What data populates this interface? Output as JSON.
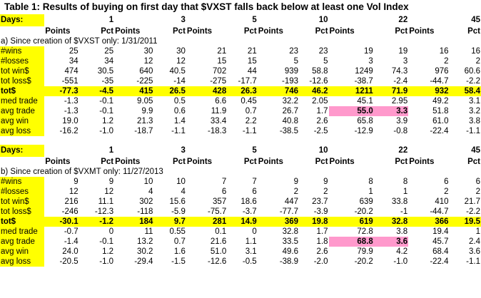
{
  "title": "Table 1: Results of buying on first day that $VXST falls back below at least one Vol Index",
  "colors": {
    "label_fill": "#ffff00",
    "highlight_row": "#ffff00",
    "highlight_cell": "#ff99cc"
  },
  "sections": [
    {
      "days_label": "Days:",
      "days": [
        "1",
        "3",
        "5",
        "10",
        "22",
        "45"
      ],
      "points_label": "Points",
      "pct_label": "Pct",
      "note": "a) Since creation of $VXST only: 1/31/2011",
      "rows": [
        {
          "label": "#wins",
          "vals": [
            "25",
            "25",
            "30",
            "30",
            "21",
            "21",
            "23",
            "23",
            "19",
            "19",
            "16",
            "16"
          ]
        },
        {
          "label": "#losses",
          "vals": [
            "34",
            "34",
            "12",
            "12",
            "15",
            "15",
            "5",
            "5",
            "3",
            "3",
            "2",
            "2"
          ]
        },
        {
          "label": "tot win$",
          "vals": [
            "474",
            "30.5",
            "640",
            "40.5",
            "702",
            "44",
            "939",
            "58.8",
            "1249",
            "74.3",
            "976",
            "60.6"
          ]
        },
        {
          "label": "tot loss$",
          "vals": [
            "-551",
            "-35",
            "-225",
            "-14",
            "-275",
            "-17.7",
            "-193",
            "-12.6",
            "-38.7",
            "-2.4",
            "-44.7",
            "-2.2"
          ]
        },
        {
          "label": "tot$",
          "vals": [
            "-77.3",
            "-4.5",
            "415",
            "26.5",
            "428",
            "26.3",
            "746",
            "46.2",
            "1211",
            "71.9",
            "932",
            "58.4"
          ]
        },
        {
          "label": "med trade",
          "vals": [
            "-1.3",
            "-0.1",
            "9.05",
            "0.5",
            "6.6",
            "0.45",
            "32.2",
            "2.05",
            "45.1",
            "2.95",
            "49.2",
            "3.1"
          ]
        },
        {
          "label": "avg trade",
          "vals": [
            "-1.3",
            "-0.1",
            "9.9",
            "0.6",
            "11.9",
            "0.7",
            "26.7",
            "1.7",
            "55.0",
            "3.3",
            "51.8",
            "3.2"
          ]
        },
        {
          "label": "avg win",
          "vals": [
            "19.0",
            "1.2",
            "21.3",
            "1.4",
            "33.4",
            "2.2",
            "40.8",
            "2.6",
            "65.8",
            "3.9",
            "61.0",
            "3.8"
          ]
        },
        {
          "label": "avg loss",
          "vals": [
            "-16.2",
            "-1.0",
            "-18.7",
            "-1.1",
            "-18.3",
            "-1.1",
            "-38.5",
            "-2.5",
            "-12.9",
            "-0.8",
            "-22.4",
            "-1.1"
          ]
        }
      ]
    },
    {
      "days_label": "Days:",
      "days": [
        "1",
        "3",
        "5",
        "10",
        "22",
        "45"
      ],
      "points_label": "Points",
      "pct_label": "Pct",
      "note": "b) Since creation of $VXMT only: 11/27/2013",
      "rows": [
        {
          "label": "#wins",
          "vals": [
            "9",
            "9",
            "10",
            "10",
            "7",
            "7",
            "9",
            "9",
            "8",
            "8",
            "6",
            "6"
          ]
        },
        {
          "label": "#losses",
          "vals": [
            "12",
            "12",
            "4",
            "4",
            "6",
            "6",
            "2",
            "2",
            "1",
            "1",
            "2",
            "2"
          ]
        },
        {
          "label": "tot win$",
          "vals": [
            "216",
            "11.1",
            "302",
            "15.6",
            "357",
            "18.6",
            "447",
            "23.7",
            "639",
            "33.8",
            "410",
            "21.7"
          ]
        },
        {
          "label": "tot loss$",
          "vals": [
            "-246",
            "-12.3",
            "-118",
            "-5.9",
            "-75.7",
            "-3.7",
            "-77.7",
            "-3.9",
            "-20.2",
            "-1",
            "-44.7",
            "-2.2"
          ]
        },
        {
          "label": "tot$",
          "vals": [
            "-30.1",
            "-1.2",
            "184",
            "9.7",
            "281",
            "14.9",
            "369",
            "19.8",
            "619",
            "32.8",
            "366",
            "19.5"
          ]
        },
        {
          "label": "med trade",
          "vals": [
            "-0.7",
            "0",
            "11",
            "0.55",
            "0.1",
            "0",
            "32.8",
            "1.7",
            "72.8",
            "3.8",
            "19.4",
            "1"
          ]
        },
        {
          "label": "avg trade",
          "vals": [
            "-1.4",
            "-0.1",
            "13.2",
            "0.7",
            "21.6",
            "1.1",
            "33.5",
            "1.8",
            "68.8",
            "3.6",
            "45.7",
            "2.4"
          ]
        },
        {
          "label": "avg win",
          "vals": [
            "24.0",
            "1.2",
            "30.2",
            "1.6",
            "51.0",
            "3.1",
            "49.6",
            "2.6",
            "79.9",
            "4.2",
            "68.4",
            "3.6"
          ]
        },
        {
          "label": "avg loss",
          "vals": [
            "-20.5",
            "-1.0",
            "-29.4",
            "-1.5",
            "-12.6",
            "-0.5",
            "-38.9",
            "-2.0",
            "-20.2",
            "-1.0",
            "-22.4",
            "-1.1"
          ]
        }
      ]
    }
  ]
}
